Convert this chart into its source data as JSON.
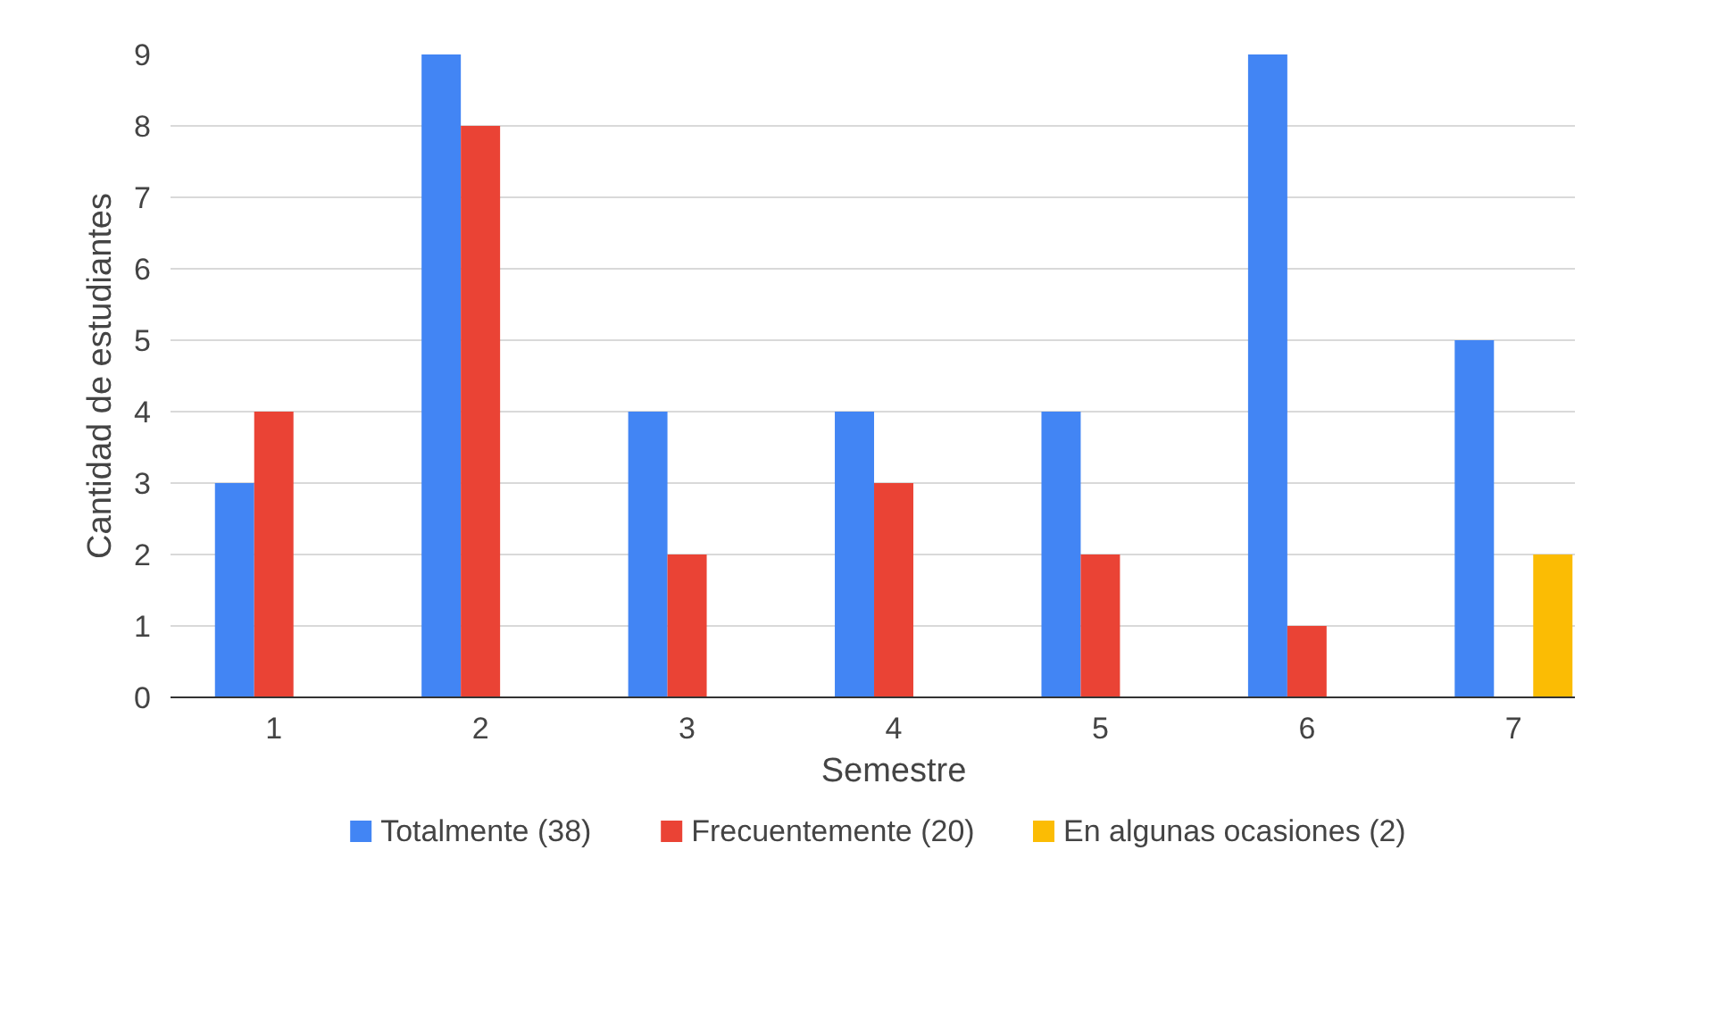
{
  "chart_data": {
    "type": "bar",
    "xlabel": "Semestre",
    "ylabel": "Cantidad de estudiantes",
    "categories": [
      "1",
      "2",
      "3",
      "4",
      "5",
      "6",
      "7"
    ],
    "series": [
      {
        "name": "Totalmente (38)",
        "color": "#4285f4",
        "values": [
          3,
          9,
          4,
          4,
          4,
          9,
          5
        ]
      },
      {
        "name": "Frecuentemente (20)",
        "color": "#ea4335",
        "values": [
          4,
          8,
          2,
          3,
          2,
          1,
          null
        ]
      },
      {
        "name": "En algunas ocasiones (2)",
        "color": "#fbbc04",
        "values": [
          null,
          null,
          null,
          null,
          null,
          null,
          2
        ]
      }
    ],
    "ylim": [
      0,
      9
    ],
    "yticks": [
      0,
      1,
      2,
      3,
      4,
      5,
      6,
      7,
      8,
      9
    ],
    "grid": "y",
    "legend": "bottom"
  }
}
